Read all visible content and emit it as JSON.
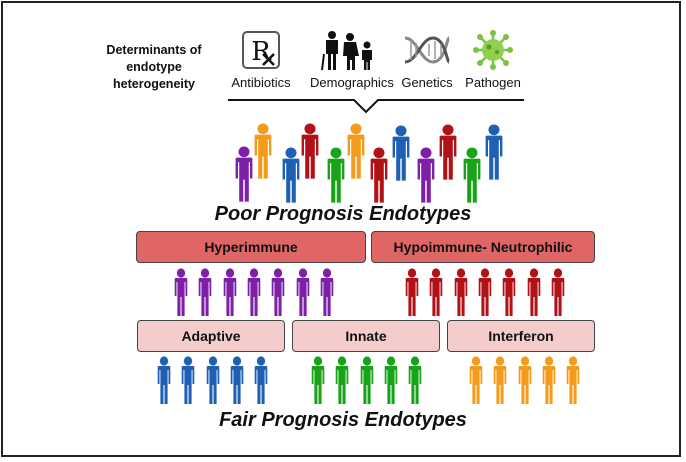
{
  "colors": {
    "purple": "#7e1fa8",
    "orange": "#f59b1c",
    "red": "#b01217",
    "blue": "#1f5fb4",
    "green": "#19a319",
    "hyper_box": "#e06666",
    "endotype_box": "#f4cccc"
  },
  "header": {
    "determinants_label": "Determinants of endotype heterogeneity",
    "items": [
      {
        "label": "Antibiotics",
        "icon": "rx-icon"
      },
      {
        "label": "Demographics",
        "icon": "family-icon"
      },
      {
        "label": "Genetics",
        "icon": "dna-icon"
      },
      {
        "label": "Pathogen",
        "icon": "virus-icon"
      }
    ]
  },
  "crowd": {
    "colors": [
      "purple",
      "orange",
      "blue",
      "red",
      "green",
      "orange",
      "red",
      "blue",
      "purple",
      "red",
      "green",
      "blue"
    ]
  },
  "poor_title": "Poor Prognosis Endotypes",
  "poor_boxes": [
    {
      "label": "Hyperimmune",
      "figure_color": "purple",
      "count": 7
    },
    {
      "label": "Hypoimmune- Neutrophilic",
      "figure_color": "red",
      "count": 7
    }
  ],
  "fair_boxes": [
    {
      "label": "Adaptive",
      "figure_color": "blue",
      "count": 5
    },
    {
      "label": "Innate",
      "figure_color": "green",
      "count": 5
    },
    {
      "label": "Interferon",
      "figure_color": "orange",
      "count": 5
    }
  ],
  "fair_title": "Fair Prognosis Endotypes"
}
